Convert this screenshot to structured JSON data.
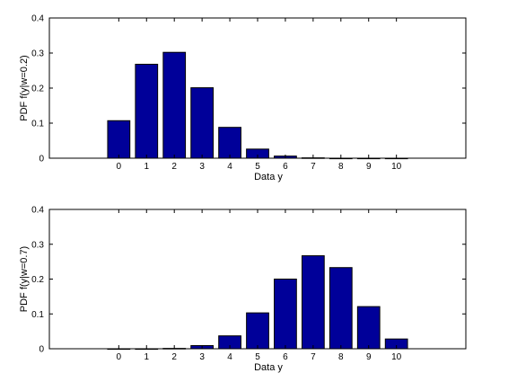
{
  "colors": {
    "bar_fill": "#000099",
    "bar_stroke": "#000000",
    "axes": "#000000",
    "background": "#ffffff"
  },
  "chart_data": [
    {
      "type": "bar",
      "categories": [
        "0",
        "1",
        "2",
        "3",
        "4",
        "5",
        "6",
        "7",
        "8",
        "9",
        "10"
      ],
      "values": [
        0.107,
        0.268,
        0.302,
        0.201,
        0.088,
        0.026,
        0.006,
        0.001,
        0.0,
        0.0,
        0.0
      ],
      "xlabel": "Data y",
      "ylabel": "PDF f(y|w=0.2)",
      "ylim": [
        0,
        0.4
      ],
      "yticks": [
        "0",
        "0.1",
        "0.2",
        "0.3",
        "0.4"
      ],
      "xlim": [
        -2.5,
        12.5
      ],
      "grid": false
    },
    {
      "type": "bar",
      "categories": [
        "0",
        "1",
        "2",
        "3",
        "4",
        "5",
        "6",
        "7",
        "8",
        "9",
        "10"
      ],
      "values": [
        0.0,
        0.0,
        0.001,
        0.009,
        0.037,
        0.103,
        0.2,
        0.267,
        0.233,
        0.121,
        0.028
      ],
      "xlabel": "Data y",
      "ylabel": "PDF f(y|w=0.7)",
      "ylim": [
        0,
        0.4
      ],
      "yticks": [
        "0",
        "0.1",
        "0.2",
        "0.3",
        "0.4"
      ],
      "xlim": [
        -2.5,
        12.5
      ],
      "grid": false
    }
  ]
}
